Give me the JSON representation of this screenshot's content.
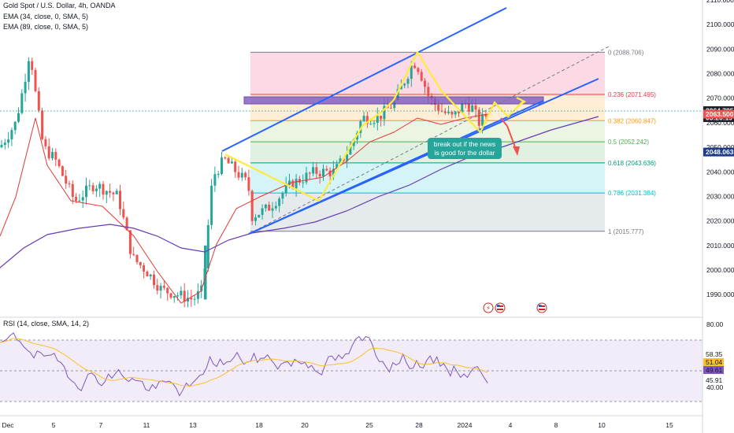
{
  "header": {
    "symbol_line": "Gold Spot / U.S. Dollar, 4h, OANDA",
    "ema1_line": "EMA (34, close, 0, SMA, 5)",
    "ema2_line": "EMA (89, close, 0, SMA, 5)",
    "rsi_line": "RSI (14, close, SMA, 14, 2)"
  },
  "colors": {
    "up": "#26a69a",
    "down": "#ef5350",
    "ema34": "#e53935",
    "ema89": "#673ab7",
    "channel": "#2962ff",
    "zigzag": "#ffeb3b",
    "resistance_box": "#7e57c2",
    "note_box": "#26a69a",
    "rsi_line": "#7e57c2",
    "rsi_ma": "#fbc02d"
  },
  "price_axis": {
    "ticks": [
      "2110.000",
      "2100.000",
      "2090.000",
      "2080.000",
      "2070.000",
      "2060.000",
      "2050.000",
      "2040.000",
      "2030.000",
      "2020.000",
      "2010.000",
      "2000.000",
      "1990.000"
    ],
    "tags": [
      {
        "label": "2064.785",
        "sub": "03:20:19",
        "price": 2064.785,
        "color": "#1e222d"
      },
      {
        "label": "2063.500",
        "price": 2063.5,
        "color": "#ef5350"
      },
      {
        "label": "2048.063",
        "price": 2048.063,
        "color": "#1e3a8a"
      }
    ]
  },
  "rsi_axis": {
    "ticks": [
      "80.00",
      "40.00"
    ],
    "tags": [
      {
        "label": "58.35",
        "value": 58.35,
        "color": "#ffffff",
        "text": "#131722"
      },
      {
        "label": "51.04",
        "value": 51.04,
        "color": "#fbc02d",
        "text": "#131722"
      },
      {
        "label": "49.61",
        "value": 49.61,
        "color": "#7e57c2",
        "text": "#ffffff"
      },
      {
        "label": "45.91",
        "value": 45.91,
        "color": "#ffffff",
        "text": "#131722"
      }
    ]
  },
  "time_axis": [
    "Dec",
    "5",
    "7",
    "11",
    "13",
    "18",
    "20",
    "25",
    "28",
    "2024",
    "4",
    "8",
    "10",
    "15"
  ],
  "fibonacci": [
    {
      "label": "0 (2088.706)",
      "price": 2088.706,
      "color": "#787b86"
    },
    {
      "label": "0.236 (2071.495)",
      "price": 2071.495,
      "color": "#f23645"
    },
    {
      "label": "0.382 (2060.847)",
      "price": 2060.847,
      "color": "#ff9800"
    },
    {
      "label": "0.5 (2052.242)",
      "price": 2052.242,
      "color": "#4caf50"
    },
    {
      "label": "0.618 (2043.636)",
      "price": 2043.636,
      "color": "#089981"
    },
    {
      "label": "0.786 (2031.384)",
      "price": 2031.384,
      "color": "#00bcd4"
    },
    {
      "label": "1 (2015.777)",
      "price": 2015.777,
      "color": "#787b86"
    }
  ],
  "annotation": {
    "line1": "break out if the news",
    "line2": "is good for the dollar"
  },
  "chart_data": {
    "type": "candlestick",
    "title": "Gold Spot / U.S. Dollar, 4h, OANDA",
    "ylim": [
      1985,
      2112
    ],
    "rsi_ylim": [
      30,
      85
    ],
    "x": [
      "Dec",
      "5",
      "7",
      "11",
      "13",
      "18",
      "20",
      "25",
      "28",
      "2024",
      "4",
      "8",
      "10",
      "15"
    ],
    "key_prices": {
      "last": 2064.785,
      "ema34": 2063.5,
      "ema89": 2048.063,
      "swing_high": 2088.706,
      "swing_low": 2015.777
    },
    "rsi": {
      "rsi": 49.61,
      "rsi_ma": 51.04,
      "band_upper": 58.35,
      "band_lower": 45.91
    }
  }
}
